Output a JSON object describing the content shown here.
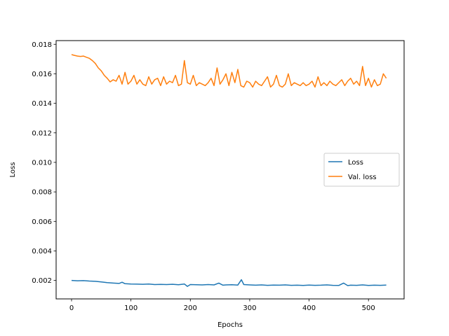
{
  "chart_data": {
    "type": "line",
    "title": "",
    "xlabel": "Epochs",
    "ylabel": "Loss",
    "xlim": [
      -26,
      560
    ],
    "ylim": [
      0.00075,
      0.01825
    ],
    "xticks": [
      0,
      100,
      200,
      300,
      400,
      500
    ],
    "xtick_labels": [
      "0",
      "100",
      "200",
      "300",
      "400",
      "500"
    ],
    "yticks": [
      0.002,
      0.004,
      0.006,
      0.008,
      0.01,
      0.012,
      0.014,
      0.016,
      0.018
    ],
    "ytick_labels": [
      "0.002",
      "0.004",
      "0.006",
      "0.008",
      "0.010",
      "0.012",
      "0.014",
      "0.016",
      "0.018"
    ],
    "grid": false,
    "legend_position": "center-right",
    "series": [
      {
        "name": "Loss",
        "color": "#1f77b4",
        "x": [
          0,
          10,
          20,
          30,
          40,
          50,
          60,
          70,
          80,
          85,
          90,
          100,
          110,
          120,
          130,
          140,
          150,
          160,
          170,
          180,
          190,
          195,
          200,
          210,
          220,
          230,
          240,
          248,
          255,
          260,
          270,
          280,
          286,
          290,
          300,
          310,
          320,
          330,
          340,
          350,
          360,
          370,
          380,
          390,
          400,
          410,
          420,
          430,
          440,
          450,
          458,
          465,
          470,
          480,
          490,
          500,
          510,
          520,
          530
        ],
        "y": [
          0.002,
          0.00198,
          0.00199,
          0.00196,
          0.00194,
          0.0019,
          0.00185,
          0.00182,
          0.0018,
          0.00188,
          0.00178,
          0.00176,
          0.00175,
          0.00174,
          0.00176,
          0.00172,
          0.00173,
          0.00172,
          0.00174,
          0.00171,
          0.00176,
          0.0016,
          0.00172,
          0.00171,
          0.0017,
          0.00172,
          0.0017,
          0.00182,
          0.00168,
          0.0017,
          0.00171,
          0.00169,
          0.00205,
          0.00172,
          0.0017,
          0.00168,
          0.0017,
          0.00167,
          0.00169,
          0.00168,
          0.0017,
          0.00167,
          0.00168,
          0.00166,
          0.00169,
          0.00167,
          0.00168,
          0.0017,
          0.00167,
          0.00166,
          0.00182,
          0.00165,
          0.00168,
          0.00167,
          0.0017,
          0.00166,
          0.00168,
          0.00167,
          0.00169
        ]
      },
      {
        "name": "Val. loss",
        "color": "#ff7f0e",
        "x": [
          0,
          5,
          10,
          15,
          20,
          25,
          30,
          35,
          40,
          45,
          50,
          55,
          60,
          65,
          70,
          75,
          80,
          85,
          90,
          95,
          100,
          105,
          110,
          115,
          120,
          125,
          130,
          135,
          140,
          145,
          150,
          155,
          160,
          165,
          170,
          175,
          180,
          185,
          190,
          195,
          200,
          205,
          210,
          215,
          220,
          225,
          230,
          235,
          240,
          245,
          250,
          255,
          260,
          265,
          270,
          275,
          280,
          285,
          290,
          295,
          300,
          305,
          310,
          315,
          320,
          325,
          330,
          335,
          340,
          345,
          350,
          355,
          360,
          365,
          370,
          375,
          380,
          385,
          390,
          395,
          400,
          405,
          410,
          415,
          420,
          425,
          430,
          435,
          440,
          445,
          450,
          455,
          460,
          465,
          470,
          475,
          480,
          485,
          490,
          495,
          500,
          505,
          510,
          515,
          520,
          525,
          530
        ],
        "y": [
          0.0173,
          0.01725,
          0.0172,
          0.01718,
          0.0172,
          0.01712,
          0.01705,
          0.0169,
          0.0167,
          0.0164,
          0.0162,
          0.0159,
          0.0157,
          0.01545,
          0.0156,
          0.0155,
          0.0159,
          0.0153,
          0.0161,
          0.0153,
          0.0155,
          0.0159,
          0.0153,
          0.0156,
          0.0153,
          0.0152,
          0.0158,
          0.0153,
          0.0156,
          0.0157,
          0.0152,
          0.0158,
          0.0153,
          0.0155,
          0.0154,
          0.0159,
          0.0152,
          0.0153,
          0.0169,
          0.0154,
          0.0153,
          0.0159,
          0.0152,
          0.0154,
          0.0153,
          0.0152,
          0.0154,
          0.0157,
          0.0152,
          0.0164,
          0.0153,
          0.0156,
          0.016,
          0.0152,
          0.0161,
          0.0154,
          0.0163,
          0.0152,
          0.0151,
          0.0155,
          0.0154,
          0.0151,
          0.0155,
          0.0153,
          0.0152,
          0.0155,
          0.0158,
          0.0151,
          0.0153,
          0.0159,
          0.0152,
          0.0151,
          0.0153,
          0.016,
          0.0152,
          0.0154,
          0.0153,
          0.0152,
          0.0154,
          0.0152,
          0.0153,
          0.0155,
          0.0151,
          0.0158,
          0.0152,
          0.0154,
          0.0152,
          0.0155,
          0.0153,
          0.0152,
          0.0154,
          0.0156,
          0.0152,
          0.0155,
          0.0157,
          0.0153,
          0.0155,
          0.0152,
          0.0165,
          0.0152,
          0.0157,
          0.0151,
          0.0156,
          0.0152,
          0.0153,
          0.016,
          0.0157
        ]
      }
    ]
  }
}
